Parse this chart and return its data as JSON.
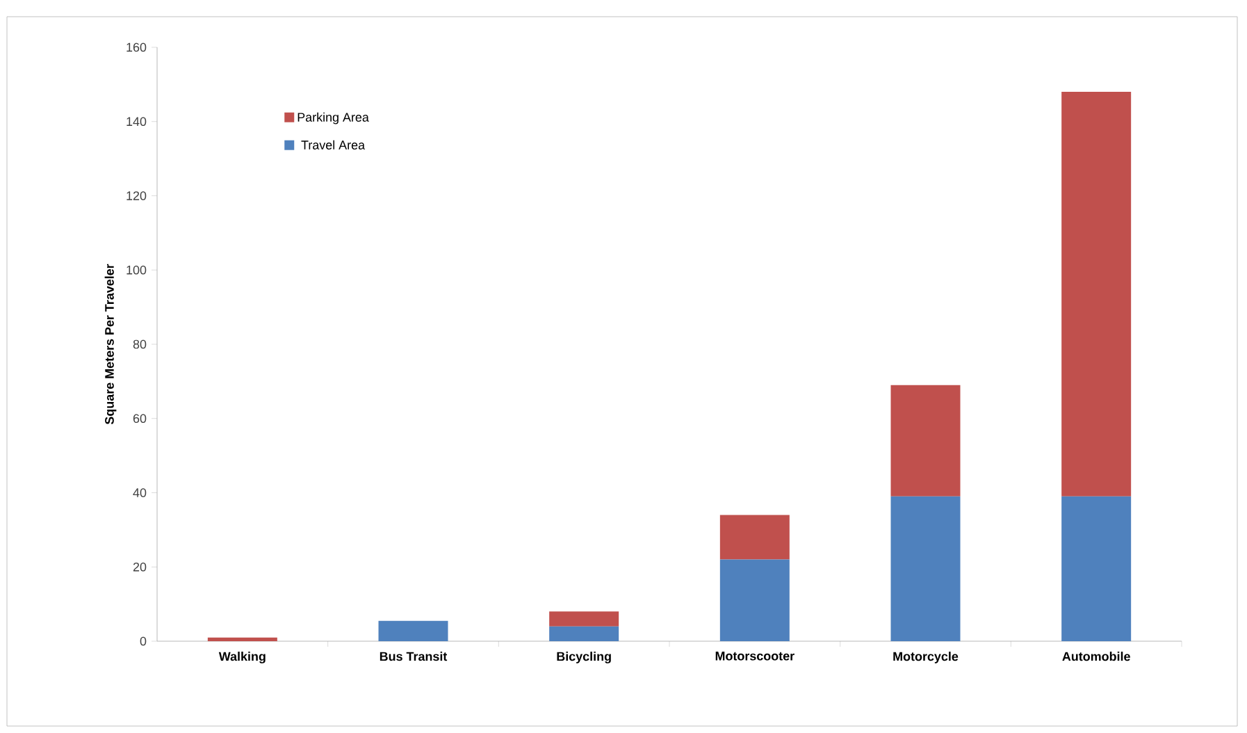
{
  "chart_data": {
    "type": "bar",
    "stacked": true,
    "ylabel": "Square Meters Per Traveler",
    "categories": [
      "Walking",
      "Bus Transit",
      "Bicycling",
      "Motorscooter",
      "Motorcycle",
      "Automobile"
    ],
    "series": [
      {
        "name": "Travel Area",
        "color": "#4f81bd",
        "values": [
          0,
          5.5,
          4,
          22,
          39,
          39
        ]
      },
      {
        "name": "Parking Area",
        "color": "#c0504d",
        "values": [
          1,
          0,
          4,
          12,
          30,
          109
        ]
      }
    ],
    "ylim": [
      0,
      160
    ],
    "yticks": [
      0,
      20,
      40,
      60,
      80,
      100,
      120,
      140,
      160
    ],
    "legend": "top left"
  }
}
